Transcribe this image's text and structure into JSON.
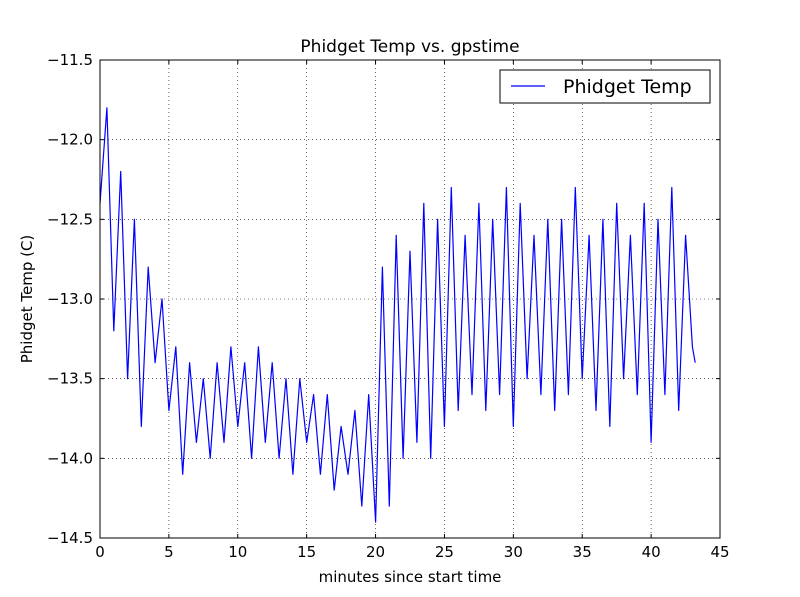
{
  "chart_data": {
    "type": "line",
    "title": "Phidget Temp vs. gpstime",
    "xlabel": "minutes since start time",
    "ylabel": "Phidget Temp (C)",
    "xlim": [
      0,
      45
    ],
    "ylim": [
      -14.5,
      -11.5
    ],
    "x_ticks": [
      0,
      5,
      10,
      15,
      20,
      25,
      30,
      35,
      40,
      45
    ],
    "x_tick_labels": [
      "0",
      "5",
      "10",
      "15",
      "20",
      "25",
      "30",
      "35",
      "40",
      "45"
    ],
    "y_ticks": [
      -11.5,
      -12.0,
      -12.5,
      -13.0,
      -13.5,
      -14.0,
      -14.5
    ],
    "y_tick_labels": [
      "−11.5",
      "−12.0",
      "−12.5",
      "−13.0",
      "−13.5",
      "−14.0",
      "−14.5"
    ],
    "grid": true,
    "legend_position": "top-right",
    "series": [
      {
        "name": "Phidget Temp",
        "color": "#0000ff",
        "x": [
          0,
          0.5,
          1,
          1.5,
          2,
          2.5,
          3,
          3.5,
          4,
          4.5,
          5,
          5.5,
          6,
          6.5,
          7,
          7.5,
          8,
          8.5,
          9,
          9.5,
          10,
          10.5,
          11,
          11.5,
          12,
          12.5,
          13,
          13.5,
          14,
          14.5,
          15,
          15.5,
          16,
          16.5,
          17,
          17.5,
          18,
          18.5,
          19,
          19.5,
          20,
          20.5,
          21,
          21.5,
          22,
          22.5,
          23,
          23.5,
          24,
          24.5,
          25,
          25.5,
          26,
          26.5,
          27,
          27.5,
          28,
          28.5,
          29,
          29.5,
          30,
          30.5,
          31,
          31.5,
          32,
          32.5,
          33,
          33.5,
          34,
          34.5,
          35,
          35.5,
          36,
          36.5,
          37,
          37.5,
          38,
          38.5,
          39,
          39.5,
          40,
          40.5,
          41,
          41.5,
          42,
          42.5,
          43,
          43.2
        ],
        "y": [
          -12.4,
          -11.8,
          -13.2,
          -12.2,
          -13.5,
          -12.5,
          -13.8,
          -12.8,
          -13.4,
          -13.0,
          -13.7,
          -13.3,
          -14.1,
          -13.4,
          -13.9,
          -13.5,
          -14.0,
          -13.4,
          -13.9,
          -13.3,
          -13.8,
          -13.4,
          -14.0,
          -13.3,
          -13.9,
          -13.4,
          -14.0,
          -13.5,
          -14.1,
          -13.5,
          -13.9,
          -13.6,
          -14.1,
          -13.6,
          -14.2,
          -13.8,
          -14.1,
          -13.7,
          -14.3,
          -13.6,
          -14.4,
          -12.8,
          -14.3,
          -12.6,
          -14.0,
          -12.7,
          -13.9,
          -12.4,
          -14.0,
          -12.5,
          -13.8,
          -12.3,
          -13.7,
          -12.6,
          -13.6,
          -12.4,
          -13.7,
          -12.5,
          -13.6,
          -12.3,
          -13.8,
          -12.4,
          -13.5,
          -12.6,
          -13.6,
          -12.5,
          -13.7,
          -12.5,
          -13.6,
          -12.3,
          -13.5,
          -12.6,
          -13.7,
          -12.5,
          -13.8,
          -12.4,
          -13.5,
          -12.6,
          -13.6,
          -12.4,
          -13.9,
          -12.5,
          -13.6,
          -12.3,
          -13.7,
          -12.6,
          -13.3,
          -13.4
        ]
      }
    ]
  }
}
